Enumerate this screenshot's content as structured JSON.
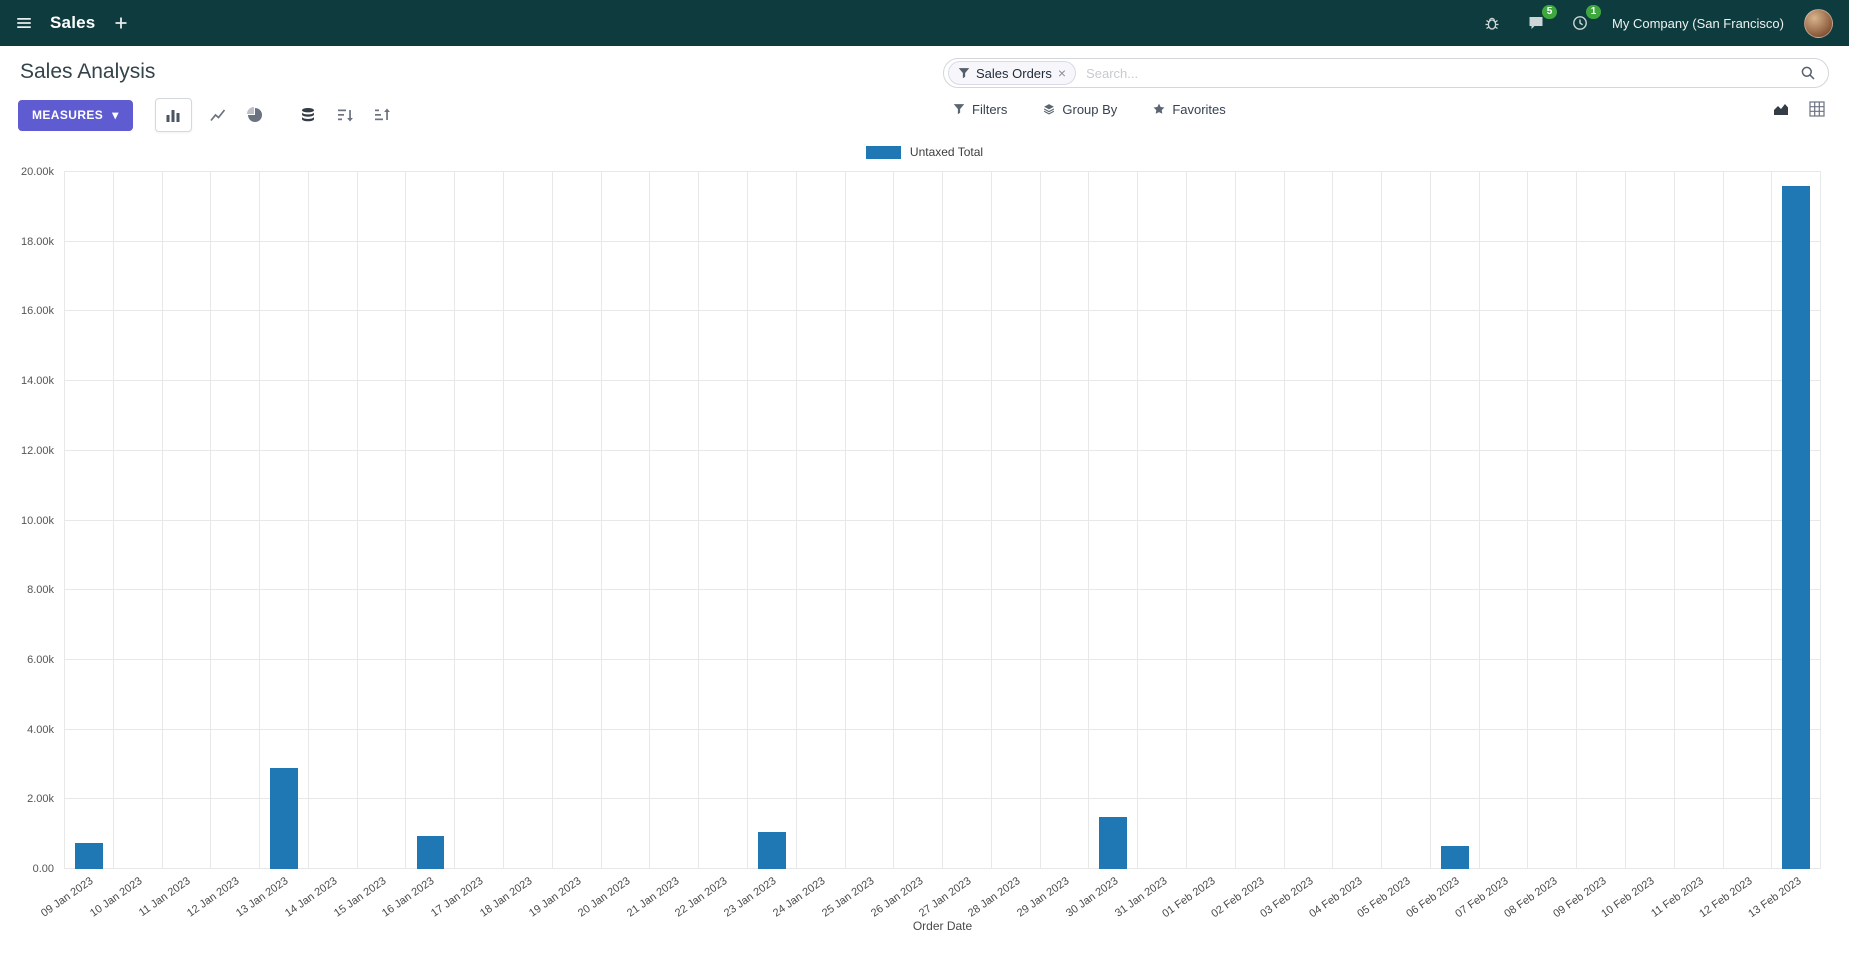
{
  "colors": {
    "navbar_bg": "#0e3b3d",
    "accent": "#5f5bd1",
    "bar": "#1f77b4",
    "badge": "#3ea83e"
  },
  "icons": {
    "caret_down": "▾",
    "remove": "×"
  },
  "navbar": {
    "app_name": "Sales",
    "company": "My Company (San Francisco)",
    "messages_badge": "5",
    "activities_badge": "1"
  },
  "control_panel": {
    "title": "Sales Analysis",
    "measures_label": "Measures"
  },
  "search": {
    "facet_label": "Sales Orders",
    "placeholder": "Search...",
    "filters_label": "Filters",
    "group_by_label": "Group By",
    "favorites_label": "Favorites"
  },
  "chart_data": {
    "type": "bar",
    "title": "",
    "legend": [
      "Untaxed Total"
    ],
    "xlabel": "Order Date",
    "ylabel": "",
    "ylim": [
      0,
      20000
    ],
    "ytick_step": 2000,
    "grid": true,
    "legend_position": "top-center",
    "ytick_labels": [
      "0.00",
      "2.00k",
      "4.00k",
      "6.00k",
      "8.00k",
      "10.00k",
      "12.00k",
      "14.00k",
      "16.00k",
      "18.00k",
      "20.00k"
    ],
    "categories": [
      "09 Jan 2023",
      "10 Jan 2023",
      "11 Jan 2023",
      "12 Jan 2023",
      "13 Jan 2023",
      "14 Jan 2023",
      "15 Jan 2023",
      "16 Jan 2023",
      "17 Jan 2023",
      "18 Jan 2023",
      "19 Jan 2023",
      "20 Jan 2023",
      "21 Jan 2023",
      "22 Jan 2023",
      "23 Jan 2023",
      "24 Jan 2023",
      "25 Jan 2023",
      "26 Jan 2023",
      "27 Jan 2023",
      "28 Jan 2023",
      "29 Jan 2023",
      "30 Jan 2023",
      "31 Jan 2023",
      "01 Feb 2023",
      "02 Feb 2023",
      "03 Feb 2023",
      "04 Feb 2023",
      "05 Feb 2023",
      "06 Feb 2023",
      "07 Feb 2023",
      "08 Feb 2023",
      "09 Feb 2023",
      "10 Feb 2023",
      "11 Feb 2023",
      "12 Feb 2023",
      "13 Feb 2023"
    ],
    "values": [
      750,
      0,
      0,
      0,
      2900,
      0,
      0,
      950,
      0,
      0,
      0,
      0,
      0,
      0,
      1050,
      0,
      0,
      0,
      0,
      0,
      0,
      1500,
      0,
      0,
      0,
      0,
      0,
      0,
      650,
      0,
      0,
      0,
      0,
      0,
      0,
      19600
    ]
  }
}
